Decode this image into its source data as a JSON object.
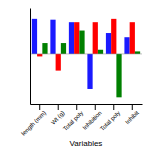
{
  "chart_data": {
    "type": "bar",
    "xlabel": "Variables",
    "categories": [
      "length (mm)",
      "Wt (g)",
      "Total poly",
      "Inhibition",
      "Total poly",
      "Inhibit"
    ],
    "series": [
      {
        "color": "#1a1aff",
        "values": [
          0.42,
          0.41,
          0.38,
          -0.42,
          0.25,
          0.2
        ]
      },
      {
        "color": "#ff0000",
        "values": [
          -0.03,
          -0.2,
          0.38,
          0.38,
          0.42,
          0.38
        ]
      },
      {
        "color": "#008000",
        "values": [
          0.13,
          0.13,
          0.28,
          0.05,
          -0.52,
          0.03
        ]
      }
    ],
    "ylim": [
      -0.6,
      0.55
    ],
    "yticks": [],
    "tick_labels": "x",
    "grid": false
  }
}
